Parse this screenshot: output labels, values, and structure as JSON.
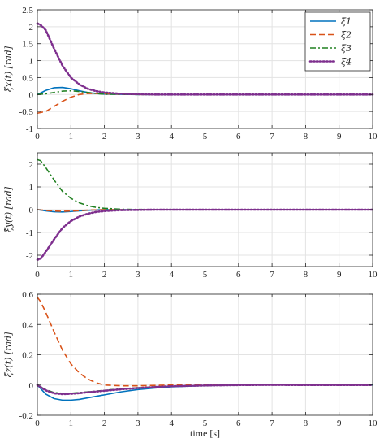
{
  "chart_data": [
    {
      "type": "line",
      "ylabel": "ξ̃x(t) [rad]",
      "xlabel": "",
      "xlim": [
        0,
        10
      ],
      "ylim": [
        -1,
        2.5
      ],
      "xticks": [
        0,
        1,
        2,
        3,
        4,
        5,
        6,
        7,
        8,
        9,
        10
      ],
      "yticks": [
        -1,
        -0.5,
        0,
        0.5,
        1,
        1.5,
        2,
        2.5
      ],
      "ytick_labels": [
        "-1",
        "-0.5",
        "0",
        "0.5",
        "1",
        "1.5",
        "2",
        "2.5"
      ],
      "grid": true,
      "legend": {
        "placement": "top-right",
        "entries": [
          "ξ1",
          "ξ2",
          "ξ3",
          "ξ4"
        ]
      },
      "series": [
        {
          "name": "ξ1",
          "color": "#0072BD",
          "dash": "solid",
          "x": [
            0,
            0.25,
            0.5,
            0.75,
            1,
            1.25,
            1.5,
            1.75,
            2,
            2.5,
            3,
            4,
            5,
            6,
            7,
            8,
            9,
            10
          ],
          "y": [
            0,
            0.12,
            0.2,
            0.21,
            0.17,
            0.11,
            0.06,
            0.03,
            0.01,
            0.005,
            0,
            0,
            0,
            0,
            0,
            0,
            0,
            0
          ]
        },
        {
          "name": "ξ2",
          "color": "#D95319",
          "dash": "dashed",
          "x": [
            0,
            0.25,
            0.5,
            0.75,
            1,
            1.25,
            1.5,
            1.75,
            2,
            2.5,
            3,
            4,
            5,
            6,
            7,
            8,
            9,
            10
          ],
          "y": [
            -0.55,
            -0.5,
            -0.35,
            -0.2,
            -0.08,
            0,
            0.03,
            0.03,
            0.02,
            0.01,
            0,
            0,
            0,
            0,
            0,
            0,
            0,
            0
          ]
        },
        {
          "name": "ξ3",
          "color": "#208020",
          "dash": "dashdot",
          "x": [
            0,
            0.25,
            0.5,
            0.75,
            1,
            1.25,
            1.5,
            1.75,
            2,
            2.5,
            3,
            4,
            5,
            6,
            7,
            8,
            9,
            10
          ],
          "y": [
            0,
            0.02,
            0.06,
            0.1,
            0.11,
            0.09,
            0.06,
            0.03,
            0.01,
            0.005,
            0,
            0,
            0,
            0,
            0,
            0,
            0,
            0
          ]
        },
        {
          "name": "ξ4",
          "color": "#7E2F8E",
          "dash": "dotted",
          "x": [
            0,
            0.1,
            0.25,
            0.5,
            0.75,
            1,
            1.25,
            1.5,
            1.75,
            2,
            2.5,
            3,
            3.5,
            4,
            5,
            6,
            7,
            8,
            9,
            10
          ],
          "y": [
            2.1,
            2.05,
            1.9,
            1.35,
            0.85,
            0.5,
            0.3,
            0.17,
            0.1,
            0.06,
            0.02,
            0.01,
            0,
            0,
            0,
            0,
            0,
            0,
            0,
            0
          ]
        }
      ]
    },
    {
      "type": "line",
      "ylabel": "ξ̃y(t) [rad]",
      "xlabel": "",
      "xlim": [
        0,
        10
      ],
      "ylim": [
        -2.5,
        2.5
      ],
      "xticks": [
        0,
        1,
        2,
        3,
        4,
        5,
        6,
        7,
        8,
        9,
        10
      ],
      "yticks": [
        -2,
        -1,
        0,
        1,
        2
      ],
      "ytick_labels": [
        "-2",
        "-1",
        "0",
        "1",
        "2"
      ],
      "grid": true,
      "series": [
        {
          "name": "ξ1",
          "color": "#0072BD",
          "dash": "solid",
          "x": [
            0,
            0.25,
            0.5,
            0.75,
            1,
            1.25,
            1.5,
            1.75,
            2,
            2.5,
            3,
            4,
            5,
            6,
            7,
            8,
            9,
            10
          ],
          "y": [
            0,
            -0.05,
            -0.09,
            -0.1,
            -0.08,
            -0.05,
            -0.03,
            -0.01,
            0,
            0,
            0,
            0,
            0,
            0,
            0,
            0,
            0,
            0
          ]
        },
        {
          "name": "ξ2",
          "color": "#D95319",
          "dash": "dashed",
          "x": [
            0,
            0.25,
            0.5,
            0.75,
            1,
            1.25,
            1.5,
            1.75,
            2,
            2.5,
            3,
            4,
            5,
            6,
            7,
            8,
            9,
            10
          ],
          "y": [
            0,
            -0.03,
            -0.06,
            -0.07,
            -0.06,
            -0.04,
            -0.02,
            -0.01,
            0,
            0,
            0,
            0,
            0,
            0,
            0,
            0,
            0,
            0
          ]
        },
        {
          "name": "ξ3",
          "color": "#208020",
          "dash": "dashdot",
          "x": [
            0,
            0.1,
            0.25,
            0.5,
            0.75,
            1,
            1.25,
            1.5,
            1.75,
            2,
            2.5,
            3,
            3.5,
            4,
            5,
            6,
            7,
            8,
            9,
            10
          ],
          "y": [
            2.2,
            2.15,
            1.85,
            1.3,
            0.8,
            0.5,
            0.3,
            0.18,
            0.1,
            0.06,
            0.02,
            0.01,
            0,
            0,
            0,
            0,
            0,
            0,
            0,
            0
          ]
        },
        {
          "name": "ξ4",
          "color": "#7E2F8E",
          "dash": "dotted",
          "x": [
            0,
            0.1,
            0.25,
            0.5,
            0.75,
            1,
            1.25,
            1.5,
            1.75,
            2,
            2.5,
            3,
            3.5,
            4,
            5,
            6,
            7,
            8,
            9,
            10
          ],
          "y": [
            -2.2,
            -2.15,
            -1.85,
            -1.3,
            -0.8,
            -0.5,
            -0.3,
            -0.18,
            -0.1,
            -0.06,
            -0.02,
            -0.01,
            0,
            0,
            0,
            0,
            0,
            0,
            0,
            0
          ]
        }
      ]
    },
    {
      "type": "line",
      "ylabel": "ξ̃z(t) [rad]",
      "xlabel": "time [s]",
      "xlim": [
        0,
        10
      ],
      "ylim": [
        -0.2,
        0.6
      ],
      "xticks": [
        0,
        1,
        2,
        3,
        4,
        5,
        6,
        7,
        8,
        9,
        10
      ],
      "yticks": [
        -0.2,
        0,
        0.2,
        0.4,
        0.6
      ],
      "ytick_labels": [
        "-0.2",
        "0",
        "0.2",
        "0.4",
        "0.6"
      ],
      "grid": true,
      "series": [
        {
          "name": "ξ1",
          "color": "#0072BD",
          "dash": "solid",
          "x": [
            0,
            0.25,
            0.5,
            0.75,
            1,
            1.25,
            1.5,
            2,
            2.5,
            3,
            3.5,
            4,
            5,
            6,
            7,
            7.5,
            8,
            9,
            10
          ],
          "y": [
            0,
            -0.06,
            -0.09,
            -0.1,
            -0.1,
            -0.095,
            -0.085,
            -0.065,
            -0.045,
            -0.03,
            -0.02,
            -0.012,
            -0.004,
            0,
            0.002,
            0.002,
            0.001,
            0,
            0
          ]
        },
        {
          "name": "ξ2",
          "color": "#D95319",
          "dash": "dashed",
          "x": [
            0,
            0.1,
            0.25,
            0.5,
            0.75,
            1,
            1.25,
            1.5,
            1.75,
            2,
            2.5,
            3,
            4,
            5,
            6,
            7,
            8,
            9,
            10
          ],
          "y": [
            0.58,
            0.55,
            0.48,
            0.35,
            0.23,
            0.14,
            0.08,
            0.04,
            0.015,
            0,
            -0.005,
            -0.005,
            0,
            0,
            0,
            0,
            0,
            0,
            0
          ]
        },
        {
          "name": "ξ3",
          "color": "#208020",
          "dash": "dashdot",
          "x": [
            0,
            0.25,
            0.5,
            0.75,
            1,
            1.25,
            1.5,
            2,
            2.5,
            3,
            3.5,
            4,
            5,
            6,
            7,
            8,
            9,
            10
          ],
          "y": [
            0,
            -0.03,
            -0.05,
            -0.055,
            -0.055,
            -0.05,
            -0.045,
            -0.035,
            -0.025,
            -0.018,
            -0.012,
            -0.008,
            -0.003,
            0,
            0.001,
            0,
            0,
            0
          ]
        },
        {
          "name": "ξ4",
          "color": "#7E2F8E",
          "dash": "dotted",
          "x": [
            0,
            0.25,
            0.5,
            0.75,
            1,
            1.25,
            1.5,
            2,
            2.5,
            3,
            3.5,
            4,
            5,
            6,
            7,
            8,
            9,
            10
          ],
          "y": [
            0,
            -0.035,
            -0.055,
            -0.06,
            -0.058,
            -0.054,
            -0.048,
            -0.038,
            -0.028,
            -0.02,
            -0.013,
            -0.008,
            -0.003,
            0,
            0.001,
            0,
            0,
            0
          ]
        }
      ]
    }
  ]
}
